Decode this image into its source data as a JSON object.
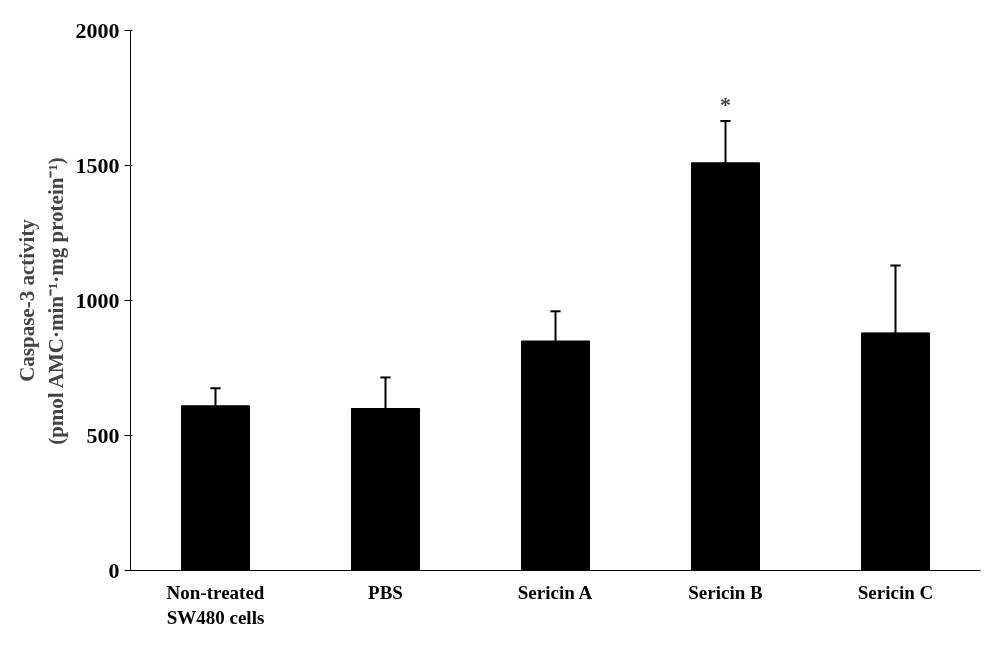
{
  "chart_data": {
    "type": "bar",
    "ylabel": "Caspase-3 activity\n(pmol AMC·min⁻¹·mg protein⁻¹)",
    "categories": [
      "Non-treated\nSW480 cells",
      "PBS",
      "Sericin A",
      "Sericin B",
      "Sericin C"
    ],
    "values": [
      610,
      600,
      850,
      1510,
      880
    ],
    "errors": [
      [
        610,
        675
      ],
      [
        600,
        715
      ],
      [
        850,
        960
      ],
      [
        1510,
        1665
      ],
      [
        880,
        1130
      ]
    ],
    "color": "#000000",
    "ylim": [
      0,
      2000
    ],
    "yticks": [
      0,
      500,
      1000,
      1500,
      2000
    ],
    "annotations": [
      {
        "text": "*",
        "x": "Sericin B",
        "y": 1665
      }
    ],
    "grid": false
  }
}
